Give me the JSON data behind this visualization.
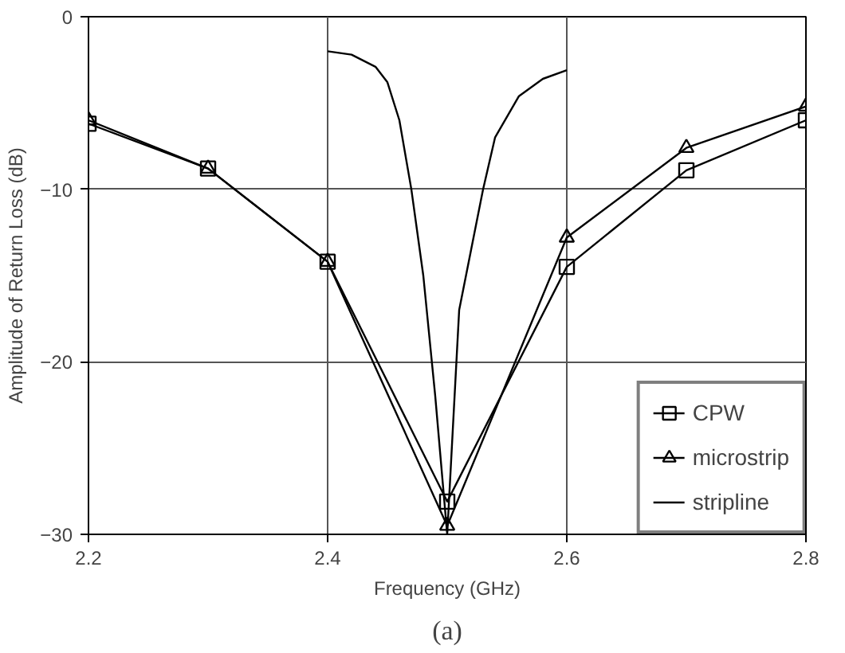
{
  "chart_data": {
    "type": "line",
    "xlabel": "Frequency (GHz)",
    "ylabel": "Amplitude of Return Loss (dB)",
    "annotations": [
      "(a)"
    ],
    "xlim": [
      2.2,
      2.8
    ],
    "ylim": [
      -30,
      0
    ],
    "xticks": [
      2.2,
      2.4,
      2.6,
      2.8
    ],
    "yticks": [
      0,
      -10,
      -20,
      -30
    ],
    "grid": true,
    "legend": "bottom right",
    "line_style": "solid",
    "series": [
      {
        "name": "CPW",
        "color": "#000000",
        "marker": "square",
        "x": [
          2.2,
          2.3,
          2.4,
          2.5,
          2.6,
          2.7,
          2.8
        ],
        "values": [
          -6.2,
          -8.8,
          -14.2,
          -28.1,
          -14.5,
          -8.9,
          -6.0
        ]
      },
      {
        "name": "microstrip",
        "color": "#000000",
        "marker": "triangle",
        "x": [
          2.2,
          2.3,
          2.4,
          2.5,
          2.6,
          2.7,
          2.8
        ],
        "values": [
          -6.0,
          -8.8,
          -14.2,
          -29.5,
          -12.8,
          -7.6,
          -5.2
        ]
      },
      {
        "name": "stripline",
        "color": "#000000",
        "marker": "none",
        "x": [
          2.4,
          2.42,
          2.44,
          2.45,
          2.46,
          2.47,
          2.48,
          2.49,
          2.5,
          2.51,
          2.52,
          2.53,
          2.54,
          2.56,
          2.58,
          2.6
        ],
        "values": [
          -2.0,
          -2.2,
          -2.9,
          -3.8,
          -6.0,
          -10.0,
          -15.0,
          -22.0,
          -30.0,
          -17.0,
          -13.5,
          -10.0,
          -7.0,
          -4.6,
          -3.6,
          -3.1
        ]
      }
    ]
  }
}
